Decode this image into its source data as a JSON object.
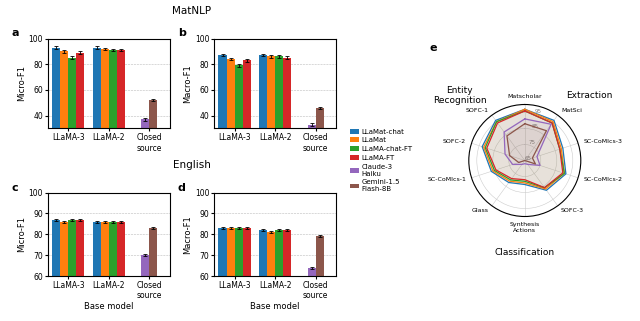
{
  "chart_data": [
    {
      "type": "bar",
      "title": "MatNLP",
      "annotations": [
        "a"
      ],
      "ylabel": "Micro-F1",
      "categories": [
        "LLaMA-3",
        "LLaMA-2",
        "Closed\nsource"
      ],
      "ylim": [
        30,
        100
      ],
      "yticks": [
        40,
        60,
        80,
        100
      ],
      "grid": true,
      "series": [
        {
          "name": "LLaMat-chat",
          "values": [
            93,
            93,
            null
          ],
          "error": [
            1.0,
            1.0,
            null
          ]
        },
        {
          "name": "LLaMat",
          "values": [
            90,
            92,
            null
          ],
          "error": [
            1.0,
            1.0,
            null
          ]
        },
        {
          "name": "LLaMA-chat-FT",
          "values": [
            85,
            91,
            null
          ],
          "error": [
            1.0,
            1.0,
            null
          ]
        },
        {
          "name": "LLaMA-FT",
          "values": [
            89,
            91,
            null
          ],
          "error": [
            1.0,
            1.0,
            null
          ]
        },
        {
          "name": "Claude-3\nHaiku",
          "values": [
            null,
            null,
            37
          ],
          "error": [
            null,
            null,
            1.0
          ]
        },
        {
          "name": "Gemini-1.5\nFlash-8B",
          "values": [
            null,
            null,
            52
          ],
          "error": [
            null,
            null,
            1.0
          ]
        }
      ]
    },
    {
      "type": "bar",
      "annotations": [
        "b"
      ],
      "ylabel": "Macro-F1",
      "categories": [
        "LLaMA-3",
        "LLaMA-2",
        "Closed\nsource"
      ],
      "ylim": [
        30,
        100
      ],
      "yticks": [
        40,
        60,
        80,
        100
      ],
      "grid": true,
      "series": [
        {
          "name": "LLaMat-chat",
          "values": [
            87,
            87,
            null
          ],
          "error": [
            1.0,
            1.0,
            null
          ]
        },
        {
          "name": "LLaMat",
          "values": [
            84,
            86,
            null
          ],
          "error": [
            1.0,
            1.0,
            null
          ]
        },
        {
          "name": "LLaMA-chat-FT",
          "values": [
            79,
            86,
            null
          ],
          "error": [
            1.0,
            1.0,
            null
          ]
        },
        {
          "name": "LLaMA-FT",
          "values": [
            83,
            85,
            null
          ],
          "error": [
            1.0,
            1.0,
            null
          ]
        },
        {
          "name": "Claude-3\nHaiku",
          "values": [
            null,
            null,
            33
          ],
          "error": [
            null,
            null,
            1.0
          ]
        },
        {
          "name": "Gemini-1.5\nFlash-8B",
          "values": [
            null,
            null,
            46
          ],
          "error": [
            null,
            null,
            1.0
          ]
        }
      ]
    },
    {
      "type": "bar",
      "title": "English",
      "annotations": [
        "c"
      ],
      "ylabel": "Micro-F1",
      "xlabel": "Base model",
      "categories": [
        "LLaMA-3",
        "LLaMA-2",
        "Closed\nsource"
      ],
      "ylim": [
        60,
        100
      ],
      "yticks": [
        60,
        70,
        80,
        90,
        100
      ],
      "grid": true,
      "series": [
        {
          "name": "LLaMat-chat",
          "values": [
            87,
            86,
            null
          ],
          "error": [
            0.5,
            0.5,
            null
          ]
        },
        {
          "name": "LLaMat",
          "values": [
            86,
            86,
            null
          ],
          "error": [
            0.5,
            0.5,
            null
          ]
        },
        {
          "name": "LLaMA-chat-FT",
          "values": [
            87,
            86,
            null
          ],
          "error": [
            0.5,
            0.5,
            null
          ]
        },
        {
          "name": "LLaMA-FT",
          "values": [
            87,
            86,
            null
          ],
          "error": [
            0.5,
            0.5,
            null
          ]
        },
        {
          "name": "Claude-3\nHaiku",
          "values": [
            null,
            null,
            70
          ],
          "error": [
            null,
            null,
            0.5
          ]
        },
        {
          "name": "Gemini-1.5\nFlash-8B",
          "values": [
            null,
            null,
            83
          ],
          "error": [
            null,
            null,
            0.5
          ]
        }
      ]
    },
    {
      "type": "bar",
      "annotations": [
        "d"
      ],
      "ylabel": "Macro-F1",
      "xlabel": "Base model",
      "categories": [
        "LLaMA-3",
        "LLaMA-2",
        "Closed\nsource"
      ],
      "ylim": [
        60,
        100
      ],
      "yticks": [
        60,
        70,
        80,
        90,
        100
      ],
      "grid": true,
      "series": [
        {
          "name": "LLaMat-chat",
          "values": [
            83,
            82,
            null
          ],
          "error": [
            0.5,
            0.5,
            null
          ]
        },
        {
          "name": "LLaMat",
          "values": [
            83,
            81,
            null
          ],
          "error": [
            0.5,
            0.5,
            null
          ]
        },
        {
          "name": "LLaMA-chat-FT",
          "values": [
            83,
            82,
            null
          ],
          "error": [
            0.5,
            0.5,
            null
          ]
        },
        {
          "name": "LLaMA-FT",
          "values": [
            83,
            82,
            null
          ],
          "error": [
            0.5,
            0.5,
            null
          ]
        },
        {
          "name": "Claude-3\nHaiku",
          "values": [
            null,
            null,
            64
          ],
          "error": [
            null,
            null,
            0.5
          ]
        },
        {
          "name": "Gemini-1.5\nFlash-8B",
          "values": [
            null,
            null,
            79
          ],
          "error": [
            null,
            null,
            0.5
          ]
        }
      ]
    },
    {
      "type": "radar",
      "annotations": [
        "e",
        "Entity\nRecognition",
        "Extraction",
        "Classification"
      ],
      "categories": [
        "Matscholar",
        "MatSci",
        "SC-CoMIcs-3",
        "SC-CoMIcs-2",
        "SOFC-3",
        "Synthesis\nActions",
        "Glass",
        "SC-CoMIcs-1",
        "SOFC-2",
        "SOFC-1"
      ],
      "ylim": [
        65,
        100
      ],
      "yticks": [
        65,
        75,
        85,
        95
      ],
      "grid": true,
      "legend": "center right",
      "series": [
        {
          "name": "LLaMat-chat",
          "values": [
            97,
            96,
            90,
            92,
            88,
            80,
            82,
            87,
            93,
            96
          ]
        },
        {
          "name": "LLaMat",
          "values": [
            97,
            95,
            89,
            91,
            87,
            79,
            81,
            86,
            92,
            95
          ]
        },
        {
          "name": "LLaMA-chat-FT",
          "values": [
            96,
            94,
            88,
            91,
            86,
            78,
            80,
            85,
            91,
            95
          ]
        },
        {
          "name": "LLaMA-FT",
          "values": [
            96,
            94,
            88,
            90,
            86,
            77,
            79,
            84,
            90,
            94
          ]
        },
        {
          "name": "Claude-3\nHaiku",
          "values": [
            91,
            93,
            73,
            75,
            68,
            67,
            68,
            73,
            78,
            87
          ]
        },
        {
          "name": "Gemini-1.5\nFlash-8B",
          "values": [
            88,
            88,
            70,
            72,
            65,
            65,
            65,
            69,
            75,
            84
          ]
        }
      ]
    }
  ]
}
